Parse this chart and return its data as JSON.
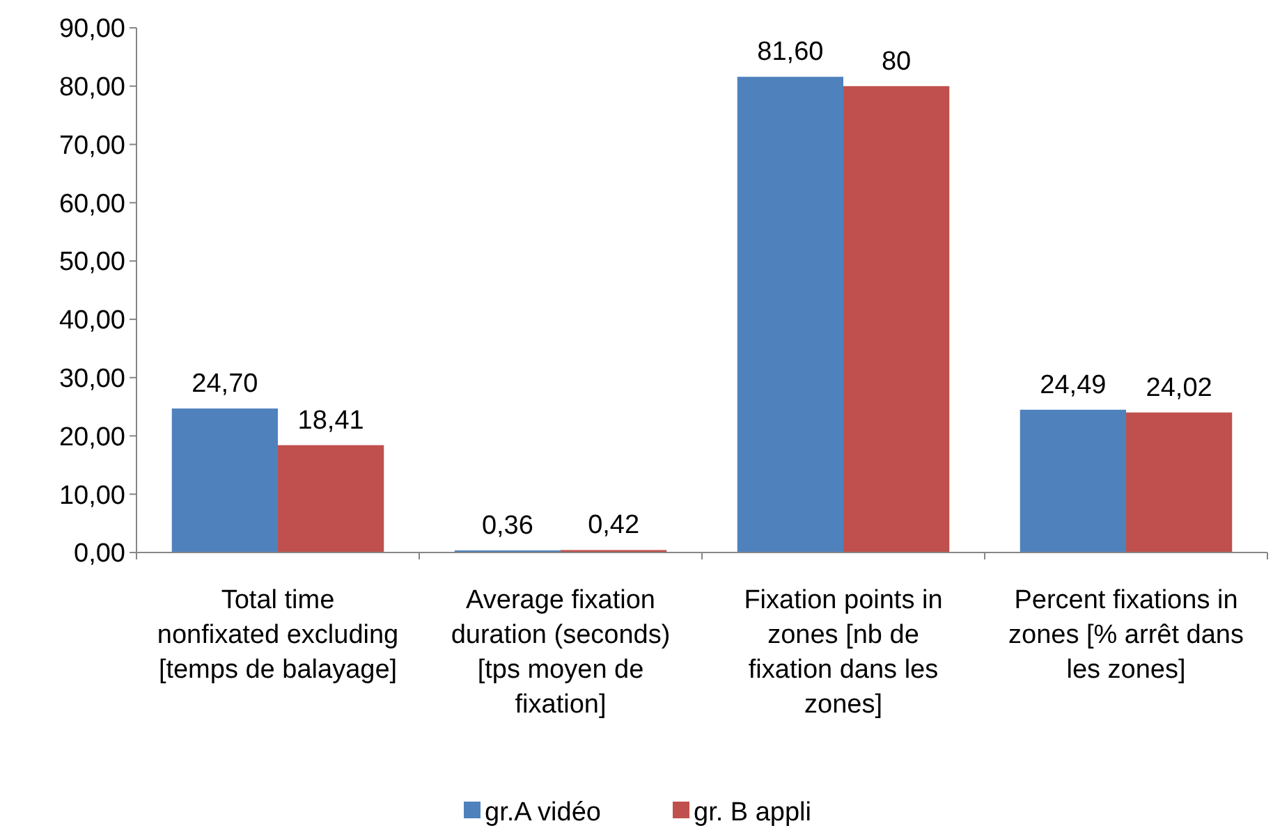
{
  "chart_data": {
    "type": "bar",
    "categories": [
      "Total time nonfixated excluding [temps de balayage]",
      "Average fixation duration (seconds) [tps moyen de fixation]",
      "Fixation points in zones [nb de fixation dans les zones]",
      "Percent fixations in zones [% arrêt dans les zones]"
    ],
    "series": [
      {
        "name": "gr.A vidéo",
        "color": "#4f81bd",
        "values": [
          24.7,
          0.36,
          81.6,
          24.49
        ],
        "value_labels": [
          "24,70",
          "0,36",
          "81,60",
          "24,49"
        ]
      },
      {
        "name": "gr. B appli",
        "color": "#c0504d",
        "values": [
          18.41,
          0.42,
          80,
          24.02
        ],
        "value_labels": [
          "18,41",
          "0,42",
          "80",
          "24,02"
        ]
      }
    ],
    "ylim": [
      0,
      90
    ],
    "yticks": [
      {
        "value": 0,
        "label": "0,00"
      },
      {
        "value": 10,
        "label": "10,00"
      },
      {
        "value": 20,
        "label": "20,00"
      },
      {
        "value": 30,
        "label": "30,00"
      },
      {
        "value": 40,
        "label": "40,00"
      },
      {
        "value": 50,
        "label": "50,00"
      },
      {
        "value": 60,
        "label": "60,00"
      },
      {
        "value": 70,
        "label": "70,00"
      },
      {
        "value": 80,
        "label": "80,00"
      },
      {
        "value": 90,
        "label": "90,00"
      }
    ],
    "grid": false,
    "legend": "bottom"
  }
}
